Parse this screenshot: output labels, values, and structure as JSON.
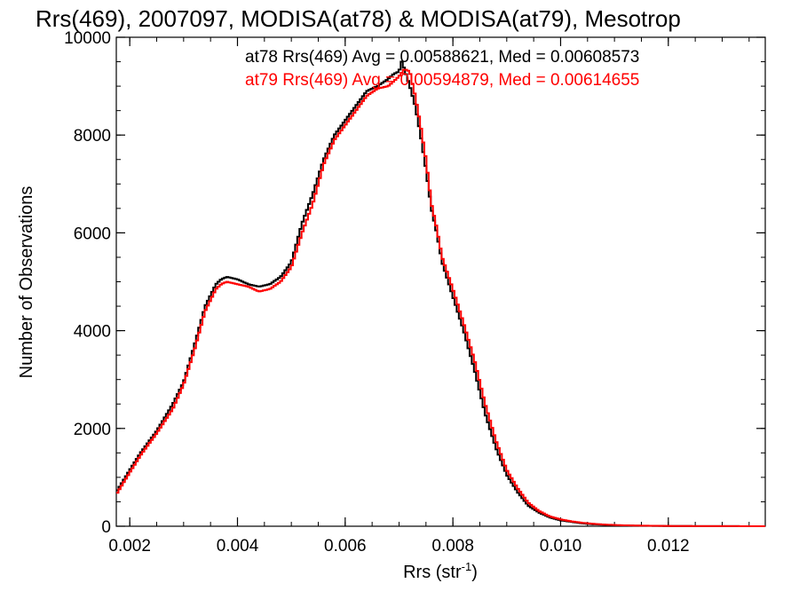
{
  "chart_data": {
    "type": "line",
    "step": true,
    "title": "Rrs(469), 2007097, MODISA(at78) & MODISA(at79), Mesotrop",
    "xlabel": "Rrs (str",
    "xlabel_sup": "-1",
    "xlabel_close": ")",
    "ylabel": "Number of Observations",
    "xlim": [
      0.00175,
      0.0138
    ],
    "ylim": [
      0,
      10000
    ],
    "xticks": [
      0.002,
      0.004,
      0.006,
      0.008,
      0.01,
      0.012
    ],
    "xtick_labels": [
      "0.002",
      "0.004",
      "0.006",
      "0.008",
      "0.010",
      "0.012"
    ],
    "yticks": [
      0,
      2000,
      4000,
      6000,
      8000,
      10000
    ],
    "ytick_labels": [
      "0",
      "2000",
      "4000",
      "6000",
      "8000",
      "10000"
    ],
    "grid": false,
    "annotations": [
      {
        "text": "at78 Rrs(469) Avg = 0.00588621, Med = 0.00608573",
        "color": "#000000"
      },
      {
        "text": "at79 Rrs(469) Avg = 0.00594879, Med = 0.00614655",
        "color": "#ff0000"
      }
    ],
    "series": [
      {
        "color": "#000000",
        "x": [
          0.00175,
          0.002,
          0.0022,
          0.0025,
          0.0028,
          0.003,
          0.0032,
          0.0034,
          0.0036,
          0.0037,
          0.0038,
          0.004,
          0.0042,
          0.0044,
          0.0046,
          0.0048,
          0.005,
          0.0052,
          0.0054,
          0.0056,
          0.0058,
          0.006,
          0.0062,
          0.0064,
          0.0066,
          0.0068,
          0.0069,
          0.007,
          0.00705,
          0.0071,
          0.0072,
          0.0073,
          0.0074,
          0.0075,
          0.0076,
          0.0077,
          0.0078,
          0.008,
          0.0082,
          0.0084,
          0.0086,
          0.0088,
          0.009,
          0.0092,
          0.0094,
          0.0096,
          0.0098,
          0.01,
          0.0102,
          0.0104,
          0.0106,
          0.0108,
          0.011,
          0.0112,
          0.0115,
          0.012,
          0.0125,
          0.013,
          0.0138
        ],
        "y": [
          700,
          1150,
          1500,
          1950,
          2500,
          2950,
          3700,
          4500,
          4950,
          5050,
          5100,
          5050,
          4950,
          4900,
          4950,
          5100,
          5400,
          6200,
          6800,
          7500,
          8000,
          8300,
          8600,
          8900,
          9000,
          9150,
          9250,
          9300,
          9500,
          9350,
          9000,
          8600,
          8000,
          7300,
          6500,
          6000,
          5400,
          4700,
          4000,
          3200,
          2300,
          1600,
          1050,
          700,
          420,
          280,
          180,
          120,
          90,
          60,
          40,
          30,
          20,
          15,
          10,
          5,
          3,
          2,
          0
        ]
      },
      {
        "color": "#ff0000",
        "x": [
          0.00175,
          0.002,
          0.0022,
          0.0025,
          0.0028,
          0.003,
          0.0032,
          0.0034,
          0.0036,
          0.0037,
          0.0038,
          0.004,
          0.0042,
          0.0044,
          0.0046,
          0.0048,
          0.005,
          0.0052,
          0.0054,
          0.0056,
          0.0058,
          0.006,
          0.0062,
          0.0064,
          0.0066,
          0.0068,
          0.0069,
          0.007,
          0.0071,
          0.0072,
          0.0073,
          0.0074,
          0.0075,
          0.0076,
          0.0077,
          0.0078,
          0.008,
          0.0082,
          0.0084,
          0.0086,
          0.0088,
          0.009,
          0.0092,
          0.0094,
          0.0096,
          0.0098,
          0.01,
          0.0102,
          0.0104,
          0.0106,
          0.0108,
          0.011,
          0.0112,
          0.0115,
          0.012,
          0.0125,
          0.013,
          0.0138
        ],
        "y": [
          650,
          1100,
          1450,
          1900,
          2400,
          2900,
          3600,
          4400,
          4850,
          4950,
          5000,
          4950,
          4900,
          4800,
          4850,
          5000,
          5300,
          6000,
          6600,
          7400,
          7900,
          8200,
          8500,
          8800,
          8950,
          9000,
          9100,
          9200,
          9350,
          9300,
          8800,
          8200,
          7500,
          6600,
          6100,
          5500,
          4850,
          4150,
          3400,
          2500,
          1750,
          1150,
          780,
          480,
          310,
          200,
          140,
          100,
          70,
          50,
          35,
          25,
          18,
          12,
          6,
          3,
          2,
          0
        ]
      }
    ]
  }
}
